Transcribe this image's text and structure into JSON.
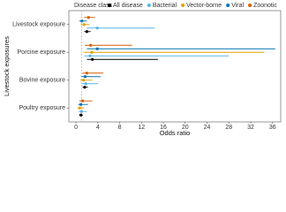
{
  "chart_data": {
    "type": "forest",
    "x_label": "Odds ratio",
    "y_label": "Livestock exposures",
    "legend_title": "Disease class",
    "categories": [
      "Livestock exposure",
      "Porcine exposure",
      "Bovine exposure",
      "Poultry exposure"
    ],
    "series": [
      {
        "name": "All disease",
        "color": "#000000",
        "values": [
          2.0,
          3.0,
          1.6,
          0.9
        ],
        "lower": [
          1.5,
          2.0,
          1.2,
          0.6
        ],
        "upper": [
          2.7,
          15.0,
          2.2,
          1.3
        ]
      },
      {
        "name": "Bacterial",
        "color": "#56B4E9",
        "values": [
          3.9,
          2.6,
          1.8,
          1.0
        ],
        "lower": [
          2.0,
          1.5,
          1.1,
          0.5
        ],
        "upper": [
          14.4,
          28.0,
          4.0,
          2.0
        ]
      },
      {
        "name": "Vector-borne",
        "color": "#E69F00",
        "values": [
          1.5,
          2.9,
          1.4,
          0.7
        ],
        "lower": [
          0.9,
          1.4,
          0.8,
          0.3
        ],
        "upper": [
          2.5,
          34.5,
          3.0,
          1.5
        ]
      },
      {
        "name": "Viral",
        "color": "#0072B2",
        "values": [
          1.1,
          3.9,
          1.7,
          0.9
        ],
        "lower": [
          0.6,
          2.0,
          1.0,
          0.4
        ],
        "upper": [
          2.0,
          36.5,
          4.5,
          2.2
        ]
      },
      {
        "name": "Zoonotic",
        "color": "#D55E00",
        "values": [
          2.3,
          2.7,
          2.0,
          1.2
        ],
        "lower": [
          1.5,
          1.6,
          1.2,
          0.6
        ],
        "upper": [
          3.5,
          10.3,
          5.0,
          3.0
        ]
      }
    ],
    "xlim": [
      -1.3,
      37.5
    ],
    "xticks": [
      0,
      4,
      8,
      12,
      16,
      20,
      24,
      28,
      32,
      36
    ],
    "reference_line": 1
  }
}
